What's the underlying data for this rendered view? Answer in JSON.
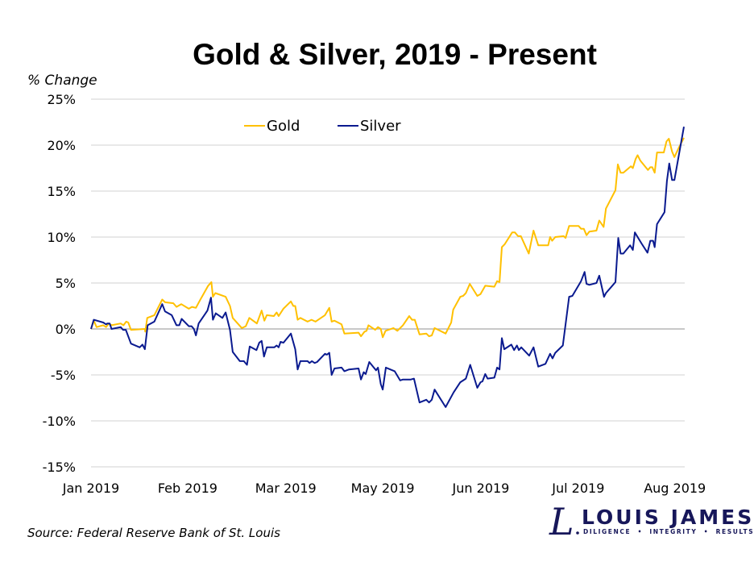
{
  "chart_data": {
    "type": "line",
    "title": "Gold & Silver, 2019 - Present",
    "ylabel": "% Change",
    "xlabel": "",
    "ylim": [
      -15,
      25
    ],
    "xlim": [
      0,
      150
    ],
    "yticks": [
      -15,
      -10,
      -5,
      0,
      5,
      10,
      15,
      20,
      25
    ],
    "ytick_labels": [
      "-15%",
      "-10%",
      "-5%",
      "0%",
      "5%",
      "10%",
      "15%",
      "20%",
      "25%"
    ],
    "xticks": [
      {
        "pos": 0,
        "label": "Jan 2019"
      },
      {
        "pos": 24.4,
        "label": "Feb 2019"
      },
      {
        "pos": 49.2,
        "label": "Mar 2019"
      },
      {
        "pos": 73.7,
        "label": "May 2019"
      },
      {
        "pos": 98.5,
        "label": "Jun 2019"
      },
      {
        "pos": 123.1,
        "label": "Jul 2019"
      },
      {
        "pos": 147.5,
        "label": "Aug 2019"
      }
    ],
    "grid": true,
    "legend_position": "top-center",
    "series": [
      {
        "name": "Gold",
        "color": "#FFC000",
        "points": [
          [
            0,
            0
          ],
          [
            0.7,
            0.9
          ],
          [
            1.4,
            0.2
          ],
          [
            3.1,
            0.4
          ],
          [
            3.8,
            0.2
          ],
          [
            4.5,
            0.6
          ],
          [
            5.2,
            0.4
          ],
          [
            7.5,
            0.6
          ],
          [
            8.2,
            0.4
          ],
          [
            8.9,
            0.8
          ],
          [
            9.4,
            0.7
          ],
          [
            10.1,
            -0.1
          ],
          [
            13.6,
            0
          ],
          [
            13.7,
            -0.3
          ],
          [
            14.2,
            1.2
          ],
          [
            16.0,
            1.5
          ],
          [
            18.0,
            3.2
          ],
          [
            18.7,
            2.9
          ],
          [
            20.8,
            2.8
          ],
          [
            21.6,
            2.4
          ],
          [
            22.8,
            2.7
          ],
          [
            24.7,
            2.2
          ],
          [
            25.5,
            2.4
          ],
          [
            26.5,
            2.3
          ],
          [
            27.5,
            3.1
          ],
          [
            29.6,
            4.7
          ],
          [
            30.4,
            5.1
          ],
          [
            30.8,
            3.5
          ],
          [
            31.4,
            3.9
          ],
          [
            34.0,
            3.5
          ],
          [
            35.1,
            2.5
          ],
          [
            35.8,
            1.2
          ],
          [
            38.1,
            0.1
          ],
          [
            39.1,
            0.3
          ],
          [
            40.0,
            1.2
          ],
          [
            41.9,
            0.6
          ],
          [
            43.1,
            2.0
          ],
          [
            43.8,
            0.9
          ],
          [
            44.4,
            1.5
          ],
          [
            46.2,
            1.4
          ],
          [
            46.9,
            1.8
          ],
          [
            47.4,
            1.4
          ],
          [
            48.6,
            2.2
          ],
          [
            50.5,
            3.0
          ],
          [
            51.1,
            2.5
          ],
          [
            51.6,
            2.5
          ],
          [
            52.2,
            1.0
          ],
          [
            52.9,
            1.2
          ],
          [
            54.7,
            0.8
          ],
          [
            55.7,
            1.0
          ],
          [
            56.7,
            0.8
          ],
          [
            59.1,
            1.5
          ],
          [
            60.2,
            2.3
          ],
          [
            60.8,
            0.8
          ],
          [
            61.5,
            0.9
          ],
          [
            63.3,
            0.5
          ],
          [
            64.0,
            -0.5
          ],
          [
            67.6,
            -0.4
          ],
          [
            68.2,
            -0.8
          ],
          [
            69.1,
            -0.3
          ],
          [
            69.6,
            -0.2
          ],
          [
            70.1,
            0.4
          ],
          [
            71.8,
            -0.1
          ],
          [
            72.5,
            0.2
          ],
          [
            73.2,
            0
          ],
          [
            73.7,
            -0.9
          ],
          [
            74.4,
            -0.2
          ],
          [
            76.4,
            0.1
          ],
          [
            77.4,
            -0.2
          ],
          [
            78.8,
            0.4
          ],
          [
            80.4,
            1.4
          ],
          [
            81.1,
            1.0
          ],
          [
            81.8,
            1.0
          ],
          [
            83.0,
            -0.6
          ],
          [
            84.7,
            -0.5
          ],
          [
            85.4,
            -0.8
          ],
          [
            86.1,
            -0.7
          ],
          [
            86.8,
            0.1
          ],
          [
            89.6,
            -0.5
          ],
          [
            91.0,
            0.7
          ],
          [
            91.5,
            2.1
          ],
          [
            93.3,
            3.5
          ],
          [
            94.0,
            3.6
          ],
          [
            94.7,
            3.9
          ],
          [
            95.7,
            4.9
          ],
          [
            97.6,
            3.6
          ],
          [
            98.4,
            3.8
          ],
          [
            99.6,
            4.7
          ],
          [
            101.9,
            4.6
          ],
          [
            102.6,
            5.2
          ],
          [
            103.2,
            5.1
          ],
          [
            103.8,
            8.9
          ],
          [
            104.5,
            9.2
          ],
          [
            106.4,
            10.5
          ],
          [
            107.1,
            10.5
          ],
          [
            107.9,
            10.1
          ],
          [
            108.6,
            10.1
          ],
          [
            110.6,
            8.2
          ],
          [
            111.8,
            10.7
          ],
          [
            113.0,
            9.1
          ],
          [
            115.5,
            9.1
          ],
          [
            116.0,
            10.0
          ],
          [
            116.5,
            9.6
          ],
          [
            117.3,
            10.0
          ],
          [
            119.4,
            10.1
          ],
          [
            119.9,
            9.9
          ],
          [
            120.8,
            11.2
          ],
          [
            123.2,
            11.2
          ],
          [
            123.8,
            10.9
          ],
          [
            124.5,
            10.9
          ],
          [
            125.2,
            10.2
          ],
          [
            125.9,
            10.6
          ],
          [
            127.7,
            10.7
          ],
          [
            128.4,
            11.8
          ],
          [
            129.5,
            11.1
          ],
          [
            130.1,
            13.1
          ],
          [
            132.5,
            15.1
          ],
          [
            133.1,
            17.9
          ],
          [
            133.8,
            17.0
          ],
          [
            134.5,
            17.0
          ],
          [
            136.4,
            17.7
          ],
          [
            136.9,
            17.5
          ],
          [
            137.6,
            18.5
          ],
          [
            138.1,
            18.9
          ],
          [
            138.8,
            18.3
          ],
          [
            140.7,
            17.3
          ],
          [
            141.3,
            17.6
          ],
          [
            141.8,
            17.6
          ],
          [
            142.4,
            17.0
          ],
          [
            143.0,
            19.2
          ],
          [
            144.7,
            19.2
          ],
          [
            145.4,
            20.4
          ],
          [
            146.0,
            20.7
          ],
          [
            146.8,
            19.3
          ],
          [
            147.4,
            18.7
          ],
          [
            148.6,
            19.8
          ],
          [
            149.8,
            20.8
          ]
        ]
      },
      {
        "name": "Silver",
        "color": "#0A1A8F",
        "points": [
          [
            0,
            0
          ],
          [
            0.7,
            1.0
          ],
          [
            3.1,
            0.7
          ],
          [
            3.8,
            0.5
          ],
          [
            4.1,
            0.6
          ],
          [
            4.7,
            0.6
          ],
          [
            5.2,
            0
          ],
          [
            7.5,
            0.2
          ],
          [
            8.1,
            -0.1
          ],
          [
            8.8,
            -0.1
          ],
          [
            10.1,
            -1.6
          ],
          [
            12.3,
            -2.0
          ],
          [
            13.0,
            -1.7
          ],
          [
            13.6,
            -2.2
          ],
          [
            14.3,
            0.4
          ],
          [
            16.0,
            0.8
          ],
          [
            18.0,
            2.7
          ],
          [
            18.7,
            1.9
          ],
          [
            20.4,
            1.5
          ],
          [
            21.6,
            0.4
          ],
          [
            22.3,
            0.4
          ],
          [
            22.9,
            1.1
          ],
          [
            24.7,
            0.3
          ],
          [
            25.4,
            0.3
          ],
          [
            26.0,
            0
          ],
          [
            26.5,
            -0.7
          ],
          [
            27.2,
            0.6
          ],
          [
            29.4,
            2.0
          ],
          [
            30.3,
            3.4
          ],
          [
            30.8,
            1.0
          ],
          [
            31.5,
            1.7
          ],
          [
            33.2,
            1.2
          ],
          [
            34.0,
            1.8
          ],
          [
            35.1,
            -0.1
          ],
          [
            35.8,
            -2.5
          ],
          [
            37.6,
            -3.5
          ],
          [
            38.6,
            -3.5
          ],
          [
            39.4,
            -3.9
          ],
          [
            40.1,
            -1.9
          ],
          [
            41.8,
            -2.3
          ],
          [
            42.5,
            -1.5
          ],
          [
            43.1,
            -1.3
          ],
          [
            43.7,
            -3.0
          ],
          [
            44.4,
            -2.0
          ],
          [
            46.3,
            -2.0
          ],
          [
            46.9,
            -1.8
          ],
          [
            47.4,
            -2.0
          ],
          [
            47.9,
            -1.4
          ],
          [
            48.6,
            -1.5
          ],
          [
            50.5,
            -0.5
          ],
          [
            51.6,
            -2.2
          ],
          [
            52.2,
            -4.4
          ],
          [
            52.9,
            -3.5
          ],
          [
            54.7,
            -3.5
          ],
          [
            55.2,
            -3.7
          ],
          [
            55.8,
            -3.5
          ],
          [
            56.5,
            -3.7
          ],
          [
            57.1,
            -3.6
          ],
          [
            59.1,
            -2.7
          ],
          [
            59.6,
            -2.8
          ],
          [
            60.2,
            -2.6
          ],
          [
            60.8,
            -5.0
          ],
          [
            61.5,
            -4.3
          ],
          [
            63.3,
            -4.2
          ],
          [
            64.0,
            -4.6
          ],
          [
            65.2,
            -4.4
          ],
          [
            67.6,
            -4.3
          ],
          [
            68.2,
            -5.5
          ],
          [
            68.9,
            -4.7
          ],
          [
            69.4,
            -4.9
          ],
          [
            70.3,
            -3.6
          ],
          [
            72.0,
            -4.5
          ],
          [
            72.5,
            -4.2
          ],
          [
            73.2,
            -6.0
          ],
          [
            73.7,
            -6.6
          ],
          [
            74.5,
            -4.2
          ],
          [
            76.7,
            -4.6
          ],
          [
            78.1,
            -5.6
          ],
          [
            78.8,
            -5.5
          ],
          [
            80.8,
            -5.5
          ],
          [
            81.6,
            -5.4
          ],
          [
            83.0,
            -8.0
          ],
          [
            84.7,
            -7.7
          ],
          [
            85.4,
            -8.0
          ],
          [
            86.1,
            -7.7
          ],
          [
            86.8,
            -6.6
          ],
          [
            89.6,
            -8.5
          ],
          [
            91.6,
            -6.9
          ],
          [
            93.3,
            -5.8
          ],
          [
            94.7,
            -5.4
          ],
          [
            95.8,
            -3.9
          ],
          [
            97.6,
            -6.4
          ],
          [
            98.4,
            -5.8
          ],
          [
            98.9,
            -5.7
          ],
          [
            99.6,
            -4.9
          ],
          [
            100.2,
            -5.4
          ],
          [
            101.9,
            -5.3
          ],
          [
            102.6,
            -4.2
          ],
          [
            103.2,
            -4.4
          ],
          [
            103.8,
            -1.0
          ],
          [
            104.4,
            -2.2
          ],
          [
            106.2,
            -1.7
          ],
          [
            106.9,
            -2.3
          ],
          [
            107.6,
            -1.8
          ],
          [
            108.1,
            -2.3
          ],
          [
            108.7,
            -2.0
          ],
          [
            110.7,
            -2.9
          ],
          [
            111.8,
            -2.0
          ],
          [
            113.0,
            -4.1
          ],
          [
            114.8,
            -3.8
          ],
          [
            116.0,
            -2.7
          ],
          [
            116.6,
            -3.2
          ],
          [
            117.3,
            -2.6
          ],
          [
            119.2,
            -1.8
          ],
          [
            120.8,
            3.5
          ],
          [
            121.6,
            3.6
          ],
          [
            123.8,
            5.2
          ],
          [
            124.7,
            6.2
          ],
          [
            125.2,
            4.9
          ],
          [
            125.9,
            4.8
          ],
          [
            127.7,
            5.0
          ],
          [
            128.4,
            5.8
          ],
          [
            129.6,
            3.5
          ],
          [
            130.1,
            3.9
          ],
          [
            132.5,
            5.1
          ],
          [
            133.2,
            9.9
          ],
          [
            133.8,
            8.2
          ],
          [
            134.5,
            8.2
          ],
          [
            136.2,
            9.1
          ],
          [
            136.9,
            8.6
          ],
          [
            137.4,
            10.5
          ],
          [
            139.1,
            9.3
          ],
          [
            140.6,
            8.3
          ],
          [
            141.3,
            9.6
          ],
          [
            142.0,
            9.6
          ],
          [
            142.4,
            8.9
          ],
          [
            143.0,
            11.4
          ],
          [
            144.9,
            12.7
          ],
          [
            145.5,
            16.1
          ],
          [
            146.1,
            18.0
          ],
          [
            146.8,
            16.2
          ],
          [
            147.4,
            16.2
          ],
          [
            149.8,
            22.0
          ]
        ]
      }
    ]
  },
  "source": "Source: Federal Reserve Bank of St. Louis",
  "logo": {
    "name": "LOUIS JAMES",
    "tagline": "DILIGENCE  •  INTEGRITY  •  RESULTS",
    "monogram": "L",
    "color": "#17175A"
  }
}
